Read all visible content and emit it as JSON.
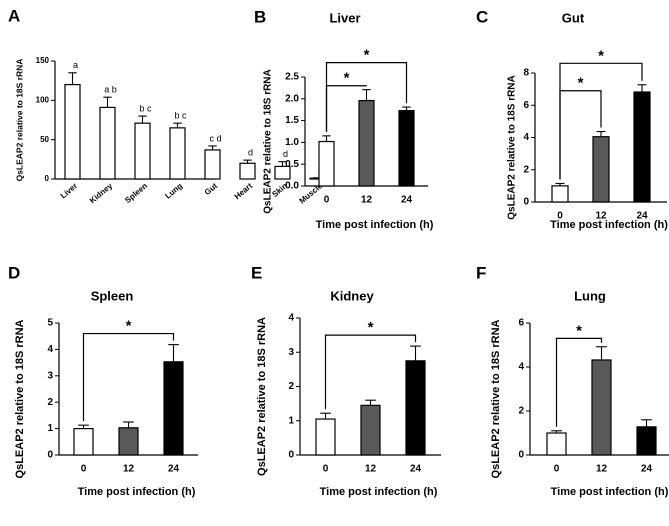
{
  "figure": {
    "background": "#ffffff"
  },
  "chart_data": [
    {
      "id": "A",
      "letter": "A",
      "type": "bar",
      "title": "",
      "xlabel": "",
      "ylabel": "QsLEAP2 relative to 18S rRNA",
      "categories": [
        "Liver",
        "Kidney",
        "Spleen",
        "Lung",
        "Gut",
        "Heart",
        "Skin",
        "Muscle"
      ],
      "values": [
        120,
        91,
        71,
        65,
        37,
        20,
        16,
        1
      ],
      "errors": [
        15,
        13,
        9,
        6,
        5,
        4,
        6,
        0.5
      ],
      "fills": [
        "#ffffff",
        "#ffffff",
        "#ffffff",
        "#ffffff",
        "#ffffff",
        "#ffffff",
        "#ffffff",
        "#ffffff"
      ],
      "labels": [
        "a",
        "a b",
        "b c",
        "b c",
        "c d",
        "d",
        "d",
        "d"
      ],
      "ylim": [
        0,
        150
      ],
      "yticks": [
        0,
        50,
        100,
        150
      ],
      "grid": false,
      "brackets": []
    },
    {
      "id": "B",
      "letter": "B",
      "type": "bar",
      "title": "Liver",
      "xlabel": "Time post infection (h)",
      "ylabel": "QsLEAP2 relative to 18S rRNA",
      "categories": [
        "0",
        "12",
        "24"
      ],
      "values": [
        1.02,
        1.96,
        1.73
      ],
      "errors": [
        0.13,
        0.25,
        0.08
      ],
      "fills": [
        "#ffffff",
        "#595959",
        "#000000"
      ],
      "labels": [],
      "ylim": [
        0,
        2.5
      ],
      "yticks": [
        0.0,
        0.5,
        1.0,
        1.5,
        2.0,
        2.5
      ],
      "tick_labels": [
        "0.0",
        "0.5",
        "1.0",
        "1.5",
        "2.0",
        "2.5"
      ],
      "grid": false,
      "brackets": [
        {
          "from": 0,
          "to": 1,
          "level": 2.3,
          "label": "*"
        },
        {
          "from": 0,
          "to": 2,
          "level": 2.83,
          "label": "*"
        }
      ]
    },
    {
      "id": "C",
      "letter": "C",
      "type": "bar",
      "title": "Gut",
      "xlabel": "Time post infection (h)",
      "ylabel": "QsLEAP2 relative to 18S rRNA",
      "categories": [
        "0",
        "12",
        "24"
      ],
      "values": [
        1.0,
        4.05,
        6.82
      ],
      "errors": [
        0.15,
        0.32,
        0.45
      ],
      "fills": [
        "#ffffff",
        "#595959",
        "#000000"
      ],
      "labels": [],
      "ylim": [
        0,
        8
      ],
      "yticks": [
        0,
        2,
        4,
        6,
        8
      ],
      "grid": false,
      "brackets": [
        {
          "from": 0,
          "to": 1,
          "level": 6.9,
          "label": "*"
        },
        {
          "from": 0,
          "to": 2,
          "level": 8.6,
          "label": "*"
        }
      ]
    },
    {
      "id": "D",
      "letter": "D",
      "type": "bar",
      "title": "Spleen",
      "xlabel": "Time post infection (h)",
      "ylabel": "QsLEAP2 relative to 18S rRNA",
      "categories": [
        "0",
        "12",
        "24"
      ],
      "values": [
        1.0,
        1.03,
        3.53
      ],
      "errors": [
        0.13,
        0.22,
        0.65
      ],
      "fills": [
        "#ffffff",
        "#595959",
        "#000000"
      ],
      "labels": [],
      "ylim": [
        0,
        5
      ],
      "yticks": [
        0,
        1,
        2,
        3,
        4,
        5
      ],
      "grid": false,
      "brackets": [
        {
          "from": 0,
          "to": 2,
          "level": 4.6,
          "label": "*"
        }
      ]
    },
    {
      "id": "E",
      "letter": "E",
      "type": "bar",
      "title": "Kidney",
      "xlabel": "Time post infection (h)",
      "ylabel": "QsLEAP2 relative to 18S rRNA",
      "categories": [
        "0",
        "12",
        "24"
      ],
      "values": [
        1.05,
        1.45,
        2.75
      ],
      "errors": [
        0.17,
        0.15,
        0.43
      ],
      "fills": [
        "#ffffff",
        "#595959",
        "#000000"
      ],
      "labels": [],
      "ylim": [
        0,
        4
      ],
      "yticks": [
        0,
        1,
        2,
        3,
        4
      ],
      "grid": false,
      "brackets": [
        {
          "from": 0,
          "to": 2,
          "level": 3.5,
          "label": "*"
        }
      ]
    },
    {
      "id": "F",
      "letter": "F",
      "type": "bar",
      "title": "Lung",
      "xlabel": "Time post infection (h)",
      "ylabel": "QsLEAP2 relative to 18S rRNA",
      "categories": [
        "0",
        "12",
        "24"
      ],
      "values": [
        1.0,
        4.32,
        1.28
      ],
      "errors": [
        0.1,
        0.6,
        0.32
      ],
      "fills": [
        "#ffffff",
        "#595959",
        "#000000"
      ],
      "labels": [],
      "ylim": [
        0,
        6
      ],
      "yticks": [
        0,
        2,
        4,
        6
      ],
      "grid": false,
      "brackets": [
        {
          "from": 0,
          "to": 1,
          "level": 5.3,
          "label": "*"
        }
      ]
    }
  ]
}
